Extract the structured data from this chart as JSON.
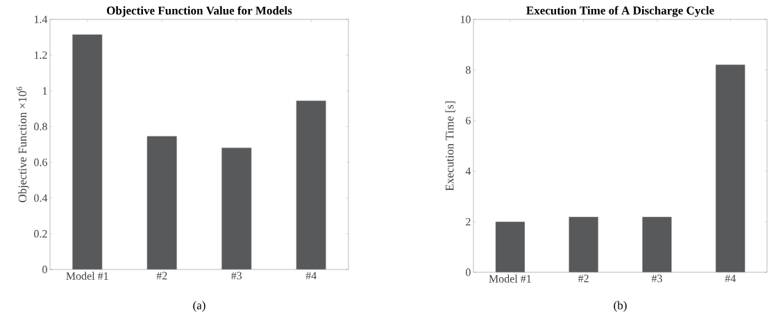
{
  "chart_data": [
    {
      "type": "bar",
      "title": "Objective Function Value for Models",
      "ylabel": "Objective Function ×10$^{6}$",
      "categories": [
        "Model #1",
        "#2",
        "#3",
        "#4"
      ],
      "values": [
        1.316,
        0.747,
        0.682,
        0.945
      ],
      "color": "#58595b",
      "ylim": [
        0,
        1.4
      ],
      "yticks": [
        0,
        0.2,
        0.4,
        0.6,
        0.8,
        1,
        1.2,
        1.4
      ],
      "grid": false,
      "annotations": [
        "(a)"
      ]
    },
    {
      "type": "bar",
      "title": "Execution Time of A Discharge Cycle",
      "ylabel": "Execution Time [s]",
      "categories": [
        "Model #1",
        "#2",
        "#3",
        "#4"
      ],
      "values": [
        2.0,
        2.19,
        2.19,
        8.21
      ],
      "color": "#58595b",
      "ylim": [
        0,
        10
      ],
      "yticks": [
        0,
        2,
        4,
        6,
        8,
        10
      ],
      "grid": false,
      "annotations": [
        "(b)"
      ]
    }
  ]
}
